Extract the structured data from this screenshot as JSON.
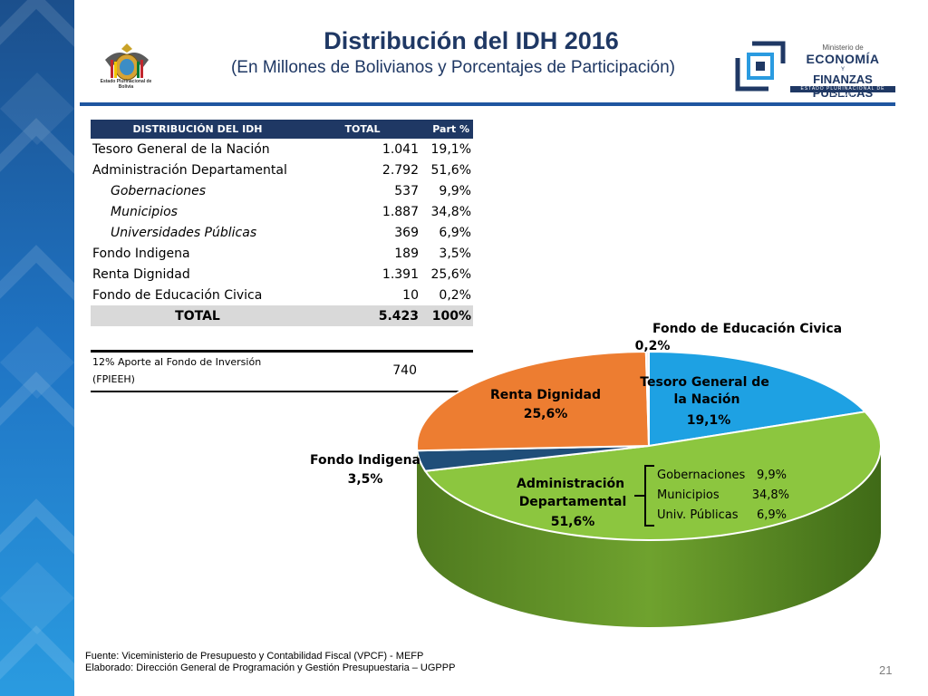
{
  "title": "Distribución del IDH 2016",
  "subtitle": "(En Millones de Bolivianos y Porcentajes de Participación)",
  "logo_left_caption": "Estado Plurinacional de Bolivia",
  "ministry_logo": {
    "line1": "Ministerio de",
    "line2": "ECONOMÍA",
    "line3": "Y",
    "line4": "FINANZAS PÚBLICAS",
    "line5": "ESTADO PLURINACIONAL DE BOLIVIA"
  },
  "table": {
    "headers": [
      "DISTRIBUCIÓN DEL IDH",
      "TOTAL",
      "Part %"
    ],
    "rows": [
      {
        "label": "Tesoro General de la Nación",
        "total": "1.041",
        "part": "19,1%",
        "sub": false
      },
      {
        "label": "Administración Departamental",
        "total": "2.792",
        "part": "51,6%",
        "sub": false
      },
      {
        "label": "Gobernaciones",
        "total": "537",
        "part": "9,9%",
        "sub": true
      },
      {
        "label": "Municipios",
        "total": "1.887",
        "part": "34,8%",
        "sub": true
      },
      {
        "label": "Universidades Públicas",
        "total": "369",
        "part": "6,9%",
        "sub": true
      },
      {
        "label": "Fondo Indigena",
        "total": "189",
        "part": "3,5%",
        "sub": false
      },
      {
        "label": "Renta Dignidad",
        "total": "1.391",
        "part": "25,6%",
        "sub": false
      },
      {
        "label": "Fondo de Educación Civica",
        "total": "10",
        "part": "0,2%",
        "sub": false
      }
    ],
    "total_row": {
      "label": "TOTAL",
      "total": "5.423",
      "part": "100%"
    }
  },
  "fpieeh": {
    "label_line1": "12% Aporte al Fondo de Inversión",
    "label_line2": "(FPIEEH)",
    "value": "740"
  },
  "chart_data": {
    "type": "pie",
    "slices": [
      {
        "name": "Tesoro General de la Nación",
        "value": 19.1,
        "label": "19,1%",
        "color": "#1ea1e3"
      },
      {
        "name": "Administración Departamental",
        "value": 51.6,
        "label": "51,6%",
        "color": "#8cc63f"
      },
      {
        "name": "Fondo Indigena",
        "value": 3.5,
        "label": "3,5%",
        "color": "#1f4e79"
      },
      {
        "name": "Renta Dignidad",
        "value": 25.6,
        "label": "25,6%",
        "color": "#ed7d31"
      },
      {
        "name": "Fondo de Educación Civica",
        "value": 0.2,
        "label": "0,2%",
        "color": "#f2f2f2"
      }
    ],
    "breakdown": [
      {
        "name": "Gobernaciones",
        "label": "9,9%"
      },
      {
        "name": "Municipios",
        "label": "34,8%"
      },
      {
        "name": "Univ. Públicas",
        "label": "6,9%"
      }
    ]
  },
  "footer": {
    "line1": "Fuente: Viceministerio de Presupuesto y Contabilidad Fiscal (VPCF) - MEFP",
    "line2": "Elaborado: Dirección General de Programación y Gestión Presupuestaria – UGPPP"
  },
  "page_number": "21"
}
